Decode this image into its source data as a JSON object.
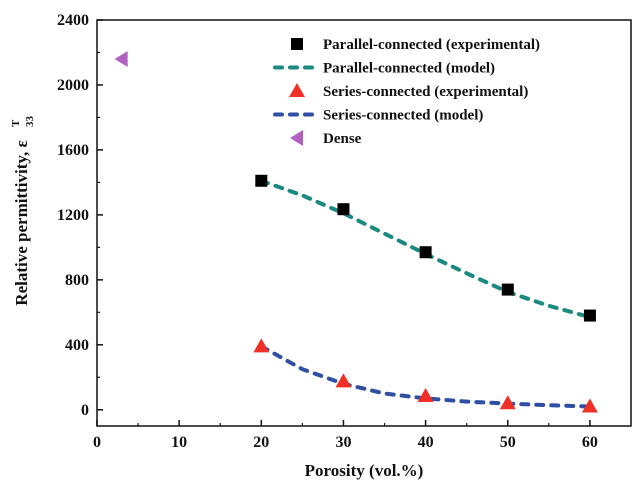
{
  "chart_data": {
    "type": "scatter",
    "title": "",
    "xlabel": "Porosity (vol.%)",
    "ylabel_main": "Relative permittivity, ε",
    "ylabel_sup": "T",
    "ylabel_sub": "33",
    "xlim": [
      0,
      65
    ],
    "ylim": [
      -100,
      2400
    ],
    "xticks": [
      0,
      10,
      20,
      30,
      40,
      50,
      60
    ],
    "yticks": [
      0,
      400,
      800,
      1200,
      1600,
      2000,
      2400
    ],
    "grid": false,
    "legend_position": "top-right",
    "series": [
      {
        "name": "Parallel-connected (experimental)",
        "kind": "marker",
        "marker": "square",
        "color": "#000000",
        "x": [
          20,
          30,
          40,
          50,
          60
        ],
        "y": [
          1410,
          1235,
          970,
          740,
          580
        ]
      },
      {
        "name": "Parallel-connected (model)",
        "kind": "dashed-line",
        "color": "#1a8a80",
        "x": [
          20,
          25,
          30,
          35,
          40,
          45,
          50,
          55,
          60
        ],
        "y": [
          1410,
          1320,
          1210,
          1085,
          960,
          840,
          725,
          640,
          570
        ]
      },
      {
        "name": "Series-connected (experimental)",
        "kind": "marker",
        "marker": "triangle-up",
        "color": "#ee3124",
        "x": [
          20,
          30,
          40,
          50,
          60
        ],
        "y": [
          390,
          175,
          85,
          40,
          20
        ]
      },
      {
        "name": "Series-connected (model)",
        "kind": "dashed-line",
        "color": "#2e4fa3",
        "x": [
          20,
          25,
          30,
          35,
          40,
          45,
          50,
          55,
          60
        ],
        "y": [
          390,
          250,
          160,
          100,
          70,
          50,
          38,
          28,
          20
        ]
      },
      {
        "name": "Dense",
        "kind": "marker",
        "marker": "triangle-left",
        "color": "#b060c0",
        "x": [
          3
        ],
        "y": [
          2160
        ]
      }
    ]
  }
}
